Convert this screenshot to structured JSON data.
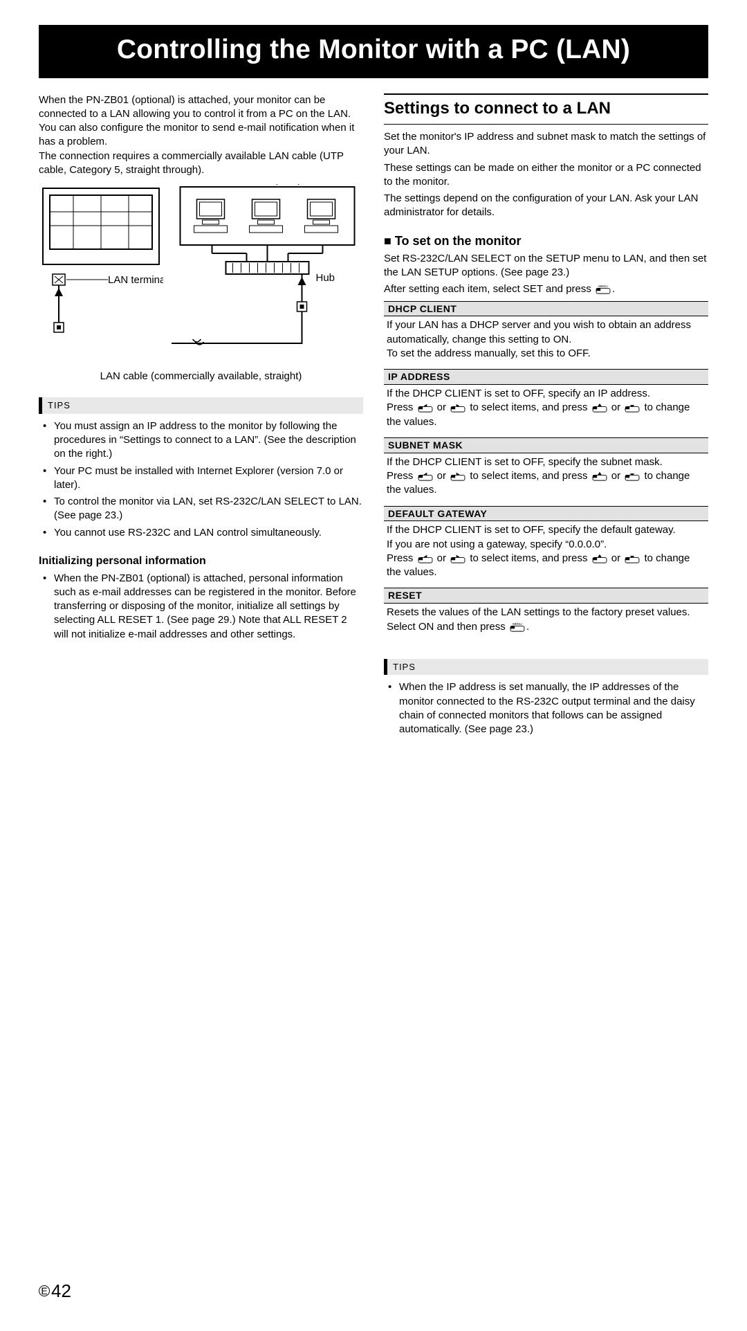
{
  "page_title": "Controlling the Monitor with a PC (LAN)",
  "left": {
    "intro": [
      "When the PN-ZB01 (optional) is attached, your monitor can be connected to a LAN allowing you to control it from a PC on the LAN.",
      "You can also configure the monitor to send e-mail notification when it has a problem.",
      "The connection requires a commercially available LAN cable (UTP cable, Category 5, straight through)."
    ],
    "diagram": {
      "network_label": "Network (LAN)",
      "lan_terminal_label": "LAN terminal",
      "hub_label": "Hub",
      "caption": "LAN cable (commercially available, straight)"
    },
    "tips_label": "TIPS",
    "tips": [
      "You must assign an IP address to the monitor by following the procedures in “Settings to connect to a LAN”. (See the description on the right.)",
      "Your PC must be installed with Internet Explorer (version 7.0 or later).",
      "To control the monitor via LAN, set RS-232C/LAN SELECT to LAN. (See page 23.)",
      "You cannot use RS-232C and LAN control simultaneously."
    ],
    "init_h": "Initializing personal information",
    "init_items": [
      "When the PN-ZB01 (optional) is attached, personal information such as e-mail addresses can be registered in the monitor. Before transferring or disposing of the monitor, initialize all settings by selecting ALL RESET 1. (See page 29.) Note that ALL RESET 2 will not initialize e-mail addresses and other settings."
    ]
  },
  "right": {
    "section_h": "Settings to connect to a LAN",
    "intro": [
      "Set the monitor's IP address and subnet mask to match the settings of your LAN.",
      "These settings can be made on either the monitor or a PC connected to the monitor.",
      "The settings depend on the configuration of your LAN. Ask your LAN administrator for details."
    ],
    "set_h": "To set on the monitor",
    "set_intro1": "Set RS-232C/LAN SELECT on the SETUP menu to LAN, and then set the LAN SETUP options. (See page 23.)",
    "set_intro2_a": "After setting each item, select SET and press ",
    "set_intro2_b": ".",
    "menu_label": "MENU",
    "settings": [
      {
        "title": "DHCP CLIENT",
        "body_plain": "If your LAN has a DHCP server and you wish to obtain an address automatically, change this setting to ON.\nTo set the address manually, set this to OFF."
      },
      {
        "title": "IP ADDRESS",
        "body_pre": "If the DHCP CLIENT is set to OFF, specify an IP address.",
        "press_line": true
      },
      {
        "title": "SUBNET MASK",
        "body_pre": "If the DHCP CLIENT is set to OFF, specify the subnet mask.",
        "press_line": true
      },
      {
        "title": "DEFAULT GATEWAY",
        "body_pre": "If the DHCP CLIENT is set to OFF, specify the default gateway.\nIf you are not using a gateway, specify “0.0.0.0”.",
        "press_line": true
      },
      {
        "title": "RESET",
        "body_reset_a": "Resets the values of the LAN settings to the factory preset values.",
        "body_reset_b1": "Select ON and then press ",
        "body_reset_b2": "."
      }
    ],
    "press_parts": {
      "a": "Press ",
      "b": " or ",
      "c": " to select items, and press ",
      "d": " or ",
      "e": " to change the values."
    },
    "tips_label": "TIPS",
    "tips": [
      "When the IP address is set manually, the IP addresses of the monitor connected to the RS-232C output terminal and the daisy chain of connected monitors that follows can be assigned automatically. (See page 23.)"
    ]
  },
  "page_number": "42",
  "page_prefix": "E",
  "colors": {
    "title_bg": "#000000",
    "title_fg": "#ffffff",
    "band_bg": "#e2e2e2",
    "tips_bg": "#e8e8e8"
  }
}
